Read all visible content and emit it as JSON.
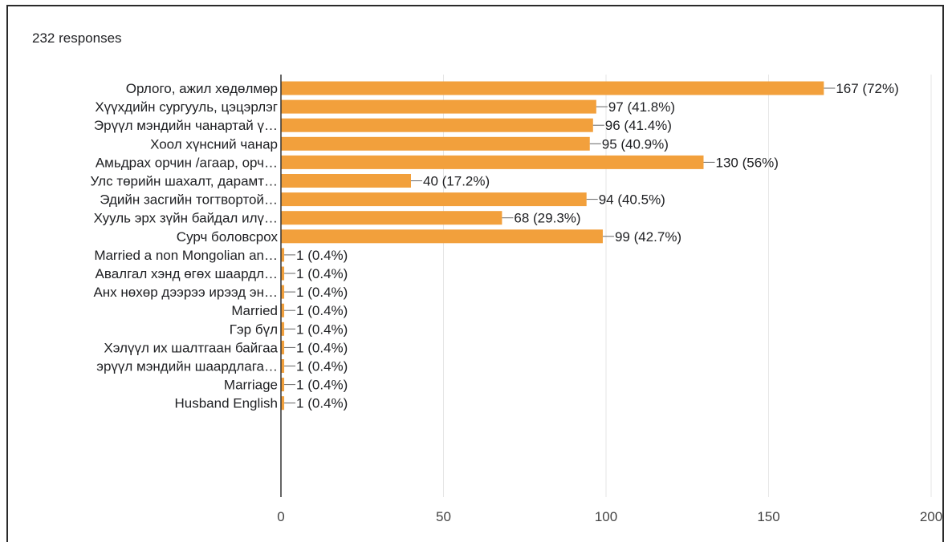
{
  "header": {
    "responses": "232 responses"
  },
  "colors": {
    "bar": "#F2A03C",
    "grid": "#E6E6E6",
    "axis": "#333333",
    "text": "#202124"
  },
  "chart_data": {
    "type": "bar",
    "orientation": "horizontal",
    "categories": [
      "Орлого, ажил хөдөлмөр",
      "Хүүхдийн сургууль, цэцэрлэг",
      "Эрүүл мэндийн чанартай ү…",
      "Хоол хүнсний чанар",
      "Амьдрах орчин /агаар, орч…",
      "Улс төрийн шахалт, дарамт…",
      "Эдийн засгийн тогтвортой…",
      "Хууль эрх зүйн байдал илү…",
      "Сурч боловсрох",
      "Married a non Mongolian an…",
      "Авалгал хэнд өгөх шаардл…",
      "Анх нөхөр дээрээ ирээд эн…",
      "Married",
      "Гэр бүл",
      "Хэлүүл их шалтгаан байгаа",
      "эрүүл мэндийн шаардлага…",
      "Marriage",
      "Husband English"
    ],
    "values": [
      167,
      97,
      96,
      95,
      130,
      40,
      94,
      68,
      99,
      1,
      1,
      1,
      1,
      1,
      1,
      1,
      1,
      1
    ],
    "value_labels": [
      "167 (72%)",
      "97 (41.8%)",
      "96 (41.4%)",
      "95 (40.9%)",
      "130 (56%)",
      "40 (17.2%)",
      "94 (40.5%)",
      "68 (29.3%)",
      "99 (42.7%)",
      "1 (0.4%)",
      "1 (0.4%)",
      "1 (0.4%)",
      "1 (0.4%)",
      "1 (0.4%)",
      "1 (0.4%)",
      "1 (0.4%)",
      "1 (0.4%)",
      "1 (0.4%)"
    ],
    "xlim": [
      0,
      200
    ],
    "xticks": [
      0,
      50,
      100,
      150,
      200
    ],
    "grid": true
  }
}
